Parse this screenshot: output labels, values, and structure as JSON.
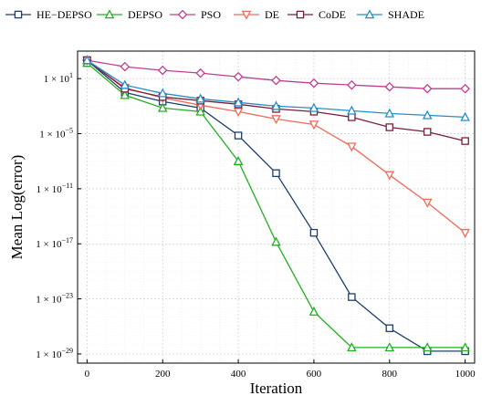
{
  "chart_data": {
    "type": "line",
    "xlabel": "Iteration",
    "ylabel": "Mean Log(error)",
    "y_scale": "log10",
    "xlim": [
      -25,
      1025
    ],
    "ylim_exponent": [
      -30,
      4
    ],
    "grid": true,
    "legend_position": "top",
    "x_ticks": [
      0,
      200,
      400,
      600,
      800,
      1000
    ],
    "x_tick_labels": [
      "0",
      "200",
      "400",
      "600",
      "800",
      "1000"
    ],
    "y_tick_exponents": [
      1,
      -5,
      -11,
      -17,
      -23,
      -29
    ],
    "y_tick_labels": [
      {
        "base": "1 × 10",
        "exp": "1"
      },
      {
        "base": "1 × 10",
        "exp": "−5"
      },
      {
        "base": "1 × 10",
        "exp": "−11"
      },
      {
        "base": "1 × 10",
        "exp": "−17"
      },
      {
        "base": "1 × 10",
        "exp": "−23"
      },
      {
        "base": "1 × 10",
        "exp": "−29"
      }
    ],
    "x": [
      0,
      100,
      200,
      300,
      400,
      500,
      600,
      700,
      800,
      900,
      1000
    ],
    "series": [
      {
        "name": "HE−DEPSO",
        "color": "#1f3f6e",
        "marker": "square",
        "values_log10": [
          3,
          -0.5,
          -1.5,
          -2.2,
          -5.2,
          -9.3,
          -15.8,
          -22.8,
          -26.2,
          -28.7,
          -28.7
        ]
      },
      {
        "name": "DEPSO",
        "color": "#22b022",
        "marker": "triangle",
        "values_log10": [
          2.7,
          -0.8,
          -2.2,
          -2.6,
          -8,
          -16.8,
          -24.4,
          -28.3,
          -28.3,
          -28.3,
          -28.3
        ]
      },
      {
        "name": "PSO",
        "color": "#c0408f",
        "marker": "diamond",
        "values_log10": [
          3,
          2.3,
          1.9,
          1.6,
          1.2,
          0.8,
          0.5,
          0.3,
          0.1,
          -0.1,
          -0.1
        ]
      },
      {
        "name": "DE",
        "color": "#f06a5a",
        "marker": "triangle-down",
        "values_log10": [
          3,
          0,
          -1.1,
          -1.9,
          -2.6,
          -3.4,
          -4,
          -6.4,
          -9.5,
          -12.5,
          -15.8
        ]
      },
      {
        "name": "CoDE",
        "color": "#7a1f3b",
        "marker": "square",
        "values_log10": [
          3,
          -0.1,
          -1,
          -1.4,
          -1.8,
          -2.3,
          -2.6,
          -3.2,
          -4.3,
          -4.8,
          -5.8
        ]
      },
      {
        "name": "SHADE",
        "color": "#2290c8",
        "marker": "triangle",
        "values_log10": [
          3,
          0.3,
          -0.6,
          -1.2,
          -1.6,
          -2,
          -2.2,
          -2.5,
          -2.8,
          -3,
          -3.2
        ]
      }
    ]
  }
}
